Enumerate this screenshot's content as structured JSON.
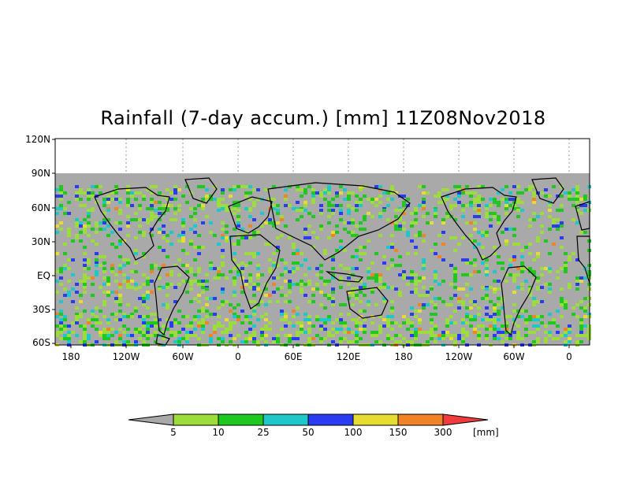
{
  "title": "Rainfall (7-day accum.) [mm] 11Z08Nov2018",
  "y_ticks": [
    "120N",
    "90N",
    "60N",
    "30N",
    "EQ",
    "30S",
    "60S"
  ],
  "x_ticks": [
    "180",
    "120W",
    "60W",
    "0",
    "60E",
    "120E",
    "180",
    "120W",
    "60W",
    "0"
  ],
  "colorbar": {
    "levels": [
      "5",
      "10",
      "25",
      "50",
      "100",
      "150",
      "300"
    ],
    "unit": "[mm]",
    "colors": [
      "#a9a9a9",
      "#9cdd3c",
      "#1ec81e",
      "#1ec8c8",
      "#2a3cf0",
      "#e6dc32",
      "#f08228",
      "#f03c3c"
    ]
  },
  "colors": {
    "no_rain": "#a9a9a9",
    "coast": "#000000",
    "plot_bg": "#ffffff"
  }
}
